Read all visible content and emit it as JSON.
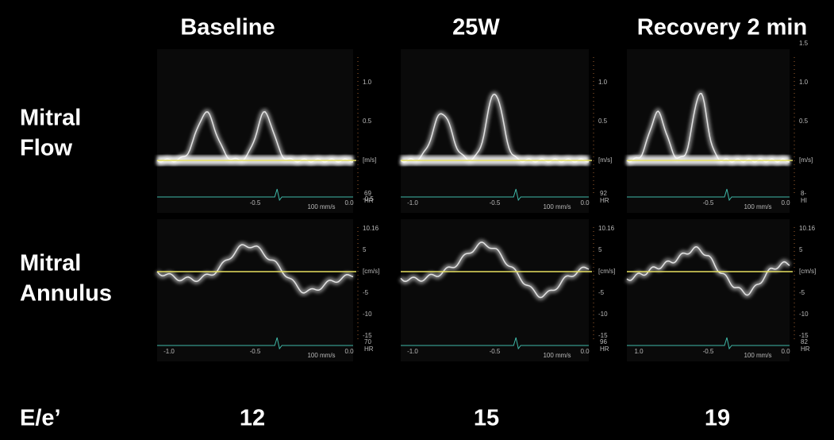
{
  "columns": [
    "Baseline",
    "25W",
    "Recovery 2 min"
  ],
  "rows": [
    [
      "Mitral",
      "Flow"
    ],
    [
      "Mitral",
      "Annulus"
    ]
  ],
  "ratio_label": "E/e’",
  "ratios": [
    12,
    15,
    19
  ],
  "panels": [
    {
      "flow": {
        "above": [
          "1.0",
          "0.5"
        ],
        "unit": "[m/s]",
        "below": [
          "-0.5"
        ],
        "time": [
          "-0.5",
          "0.0"
        ],
        "speed": "100 mm/s",
        "hr": "69",
        "hr_label": "HR"
      },
      "annulus": {
        "above": [
          "10.16",
          "5"
        ],
        "unit": "[cm/s]",
        "below": [
          "-5",
          "-10",
          "-15"
        ],
        "time": [
          "-1.0",
          "-0.5",
          "0.0"
        ],
        "speed": "100 mm/s",
        "hr": "70",
        "hr_label": "HR"
      }
    },
    {
      "flow": {
        "above": [
          "1.0",
          "0.5"
        ],
        "unit": "[m/s]",
        "below": [],
        "time": [
          "-1.0",
          "-0.5",
          "0.0"
        ],
        "speed": "100 mm/s",
        "hr": "92",
        "hr_label": "HR"
      },
      "annulus": {
        "above": [
          "10.16",
          "5"
        ],
        "unit": "[cm/s]",
        "below": [
          "-5",
          "-10",
          "-15"
        ],
        "time": [
          "-1.0",
          "-0.5",
          "0.0"
        ],
        "speed": "100 mm/s",
        "hr": "96",
        "hr_label": "HR"
      }
    },
    {
      "flow": {
        "above": [
          "1.5",
          "1.0",
          "0.5"
        ],
        "unit": "[m/s]",
        "below": [],
        "time": [
          "-0.5",
          "0.0"
        ],
        "speed": "100 mm/s",
        "hr": "8-",
        "hr_label": "HI"
      },
      "annulus": {
        "above": [
          "10.16",
          "5"
        ],
        "unit": "[cm/s]",
        "below": [
          "-5",
          "-10",
          "-15"
        ],
        "time": [
          "1.0",
          "-0.5",
          "0.0"
        ],
        "speed": "100 mm/s",
        "hr": "82",
        "hr_label": "HR"
      }
    }
  ]
}
